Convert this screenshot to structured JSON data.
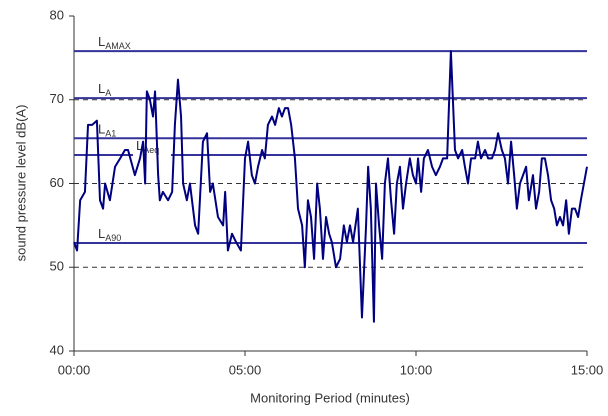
{
  "chart_data": {
    "type": "line",
    "y_label": "sound pressure level dB(A)",
    "x_label": "Monitoring Period (minutes)",
    "xlim": [
      0,
      15
    ],
    "xticks": [
      {
        "value": 0,
        "label": "00:00"
      },
      {
        "value": 5,
        "label": "05:00"
      },
      {
        "value": 10,
        "label": "10:00"
      },
      {
        "value": 15,
        "label": "15:00"
      }
    ],
    "ylim": [
      40,
      80
    ],
    "yticks": [
      40,
      50,
      60,
      70,
      80
    ],
    "grid": "dashed",
    "series": [
      {
        "color": "#000080",
        "x": [
          0,
          0.09,
          0.18,
          0.32,
          0.41,
          0.53,
          0.67,
          0.76,
          0.85,
          0.91,
          1.05,
          1.2,
          1.35,
          1.49,
          1.58,
          1.78,
          1.93,
          2.02,
          2.08,
          2.13,
          2.22,
          2.31,
          2.37,
          2.46,
          2.51,
          2.6,
          2.75,
          2.87,
          2.95,
          3.04,
          3.13,
          3.19,
          3.3,
          3.39,
          3.54,
          3.63,
          3.77,
          3.89,
          3.98,
          4.06,
          4.21,
          4.36,
          4.42,
          4.5,
          4.62,
          4.74,
          4.88,
          5.0,
          5.09,
          5.2,
          5.29,
          5.38,
          5.5,
          5.58,
          5.67,
          5.79,
          5.88,
          5.99,
          6.08,
          6.17,
          6.26,
          6.35,
          6.46,
          6.55,
          6.67,
          6.75,
          6.84,
          6.93,
          7.02,
          7.11,
          7.19,
          7.28,
          7.37,
          7.46,
          7.54,
          7.66,
          7.78,
          7.89,
          7.98,
          8.07,
          8.16,
          8.3,
          8.42,
          8.54,
          8.6,
          8.68,
          8.77,
          8.83,
          8.92,
          9.01,
          9.09,
          9.18,
          9.27,
          9.36,
          9.44,
          9.53,
          9.62,
          9.71,
          9.82,
          9.91,
          10.0,
          10.06,
          10.15,
          10.23,
          10.35,
          10.47,
          10.58,
          10.7,
          10.79,
          10.91,
          11.02,
          11.14,
          11.23,
          11.35,
          11.43,
          11.52,
          11.61,
          11.73,
          11.81,
          11.9,
          12.02,
          12.11,
          12.22,
          12.31,
          12.4,
          12.51,
          12.6,
          12.69,
          12.78,
          12.87,
          12.95,
          13.04,
          13.13,
          13.22,
          13.3,
          13.42,
          13.51,
          13.6,
          13.68,
          13.77,
          13.86,
          13.95,
          14.04,
          14.12,
          14.21,
          14.3,
          14.39,
          14.47,
          14.56,
          14.65,
          14.74,
          14.82,
          14.91,
          15.0
        ],
        "values": [
          53,
          52,
          58,
          59,
          67,
          67,
          67.5,
          58,
          57,
          60,
          58,
          62,
          63,
          64,
          64,
          61,
          63,
          65,
          60,
          71,
          70,
          68,
          71,
          61,
          58,
          59,
          58,
          59,
          67,
          72.4,
          68,
          60,
          58,
          60,
          55,
          54,
          65,
          66,
          59,
          60,
          56,
          55,
          59,
          52,
          54,
          53,
          52,
          63,
          65,
          61,
          60,
          62,
          64,
          63,
          67,
          68,
          67,
          69,
          68,
          69,
          69,
          67,
          63,
          57,
          55,
          50,
          58,
          56,
          51,
          60,
          57,
          51,
          56,
          54,
          53,
          50,
          51,
          55,
          53,
          55,
          53,
          57,
          44,
          55,
          62,
          57,
          43.5,
          60,
          55,
          51,
          60,
          63,
          58,
          54,
          60,
          62,
          57,
          60,
          63,
          61,
          60,
          63,
          59,
          63,
          64,
          62,
          61,
          62,
          63,
          63,
          75.8,
          64,
          63,
          64,
          62,
          60,
          63,
          63,
          65,
          63,
          64,
          63,
          63,
          64,
          66,
          64,
          63,
          60,
          65,
          61,
          57,
          60,
          61,
          62,
          58,
          61,
          57,
          59,
          63,
          63,
          61,
          58,
          57,
          55,
          56,
          55,
          58,
          54,
          57,
          57,
          56,
          58,
          60,
          62
        ]
      }
    ],
    "reference_lines": [
      {
        "label": "L",
        "subscript": "AMAX",
        "value": 75.8,
        "color": "#333399"
      },
      {
        "label": "L",
        "subscript": "A",
        "value": 70.2,
        "color": "#333399"
      },
      {
        "label": "L",
        "subscript": "A1",
        "value": 65.4,
        "color": "#333399"
      },
      {
        "label": "L",
        "subscript": "Aeq",
        "value": 63.4,
        "color": "#333399"
      },
      {
        "label": "L",
        "subscript": "A90",
        "value": 52.9,
        "color": "#333399"
      }
    ]
  }
}
